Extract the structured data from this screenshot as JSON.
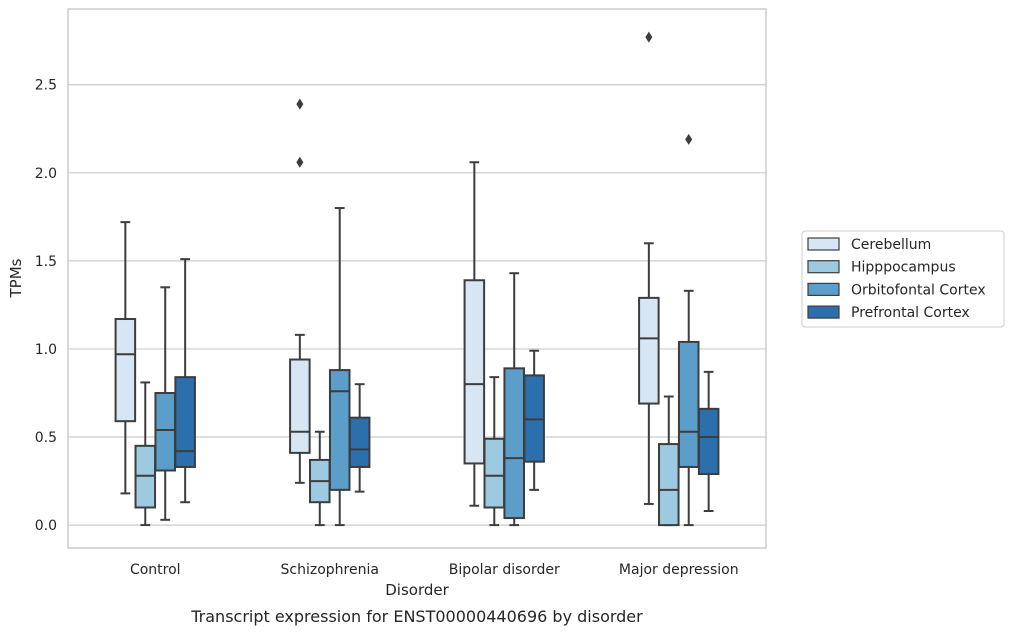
{
  "chart_data": {
    "type": "box",
    "caption": "Transcript expression for ENST00000440696 by disorder",
    "xlabel": "Disorder",
    "ylabel": "TPMs",
    "ylim": [
      -0.13,
      2.93
    ],
    "yticks": [
      "0.0",
      "0.5",
      "1.0",
      "1.5",
      "2.0",
      "2.5"
    ],
    "grid": "horizontal",
    "legend_position": "right",
    "categories": [
      "Control",
      "Schizophrenia",
      "Bipolar disorder",
      "Major depression"
    ],
    "series": [
      {
        "name": "Cerebellum",
        "color": "#d6e6f4",
        "boxes": [
          {
            "whisker_low": 0.18,
            "q1": 0.59,
            "median": 0.97,
            "q3": 1.17,
            "whisker_high": 1.72,
            "outliers": []
          },
          {
            "whisker_low": 0.24,
            "q1": 0.41,
            "median": 0.53,
            "q3": 0.94,
            "whisker_high": 1.08,
            "outliers": [
              2.06,
              2.39
            ]
          },
          {
            "whisker_low": 0.11,
            "q1": 0.35,
            "median": 0.8,
            "q3": 1.39,
            "whisker_high": 2.06,
            "outliers": []
          },
          {
            "whisker_low": 0.12,
            "q1": 0.69,
            "median": 1.06,
            "q3": 1.29,
            "whisker_high": 1.6,
            "outliers": [
              2.77
            ]
          }
        ]
      },
      {
        "name": "Hipppocampus",
        "color": "#9ecae1",
        "boxes": [
          {
            "whisker_low": 0.0,
            "q1": 0.1,
            "median": 0.28,
            "q3": 0.45,
            "whisker_high": 0.81,
            "outliers": []
          },
          {
            "whisker_low": 0.0,
            "q1": 0.13,
            "median": 0.25,
            "q3": 0.37,
            "whisker_high": 0.53,
            "outliers": []
          },
          {
            "whisker_low": 0.0,
            "q1": 0.1,
            "median": 0.28,
            "q3": 0.49,
            "whisker_high": 0.84,
            "outliers": []
          },
          {
            "whisker_low": 0.0,
            "q1": 0.0,
            "median": 0.2,
            "q3": 0.46,
            "whisker_high": 0.73,
            "outliers": []
          }
        ]
      },
      {
        "name": "Orbitofontal Cortex",
        "color": "#5a9ec9",
        "boxes": [
          {
            "whisker_low": 0.03,
            "q1": 0.31,
            "median": 0.54,
            "q3": 0.75,
            "whisker_high": 1.35,
            "outliers": []
          },
          {
            "whisker_low": 0.0,
            "q1": 0.2,
            "median": 0.76,
            "q3": 0.88,
            "whisker_high": 1.8,
            "outliers": []
          },
          {
            "whisker_low": 0.0,
            "q1": 0.04,
            "median": 0.38,
            "q3": 0.89,
            "whisker_high": 1.43,
            "outliers": []
          },
          {
            "whisker_low": 0.0,
            "q1": 0.33,
            "median": 0.53,
            "q3": 1.04,
            "whisker_high": 1.33,
            "outliers": [
              2.19
            ]
          }
        ]
      },
      {
        "name": "Prefrontal Cortex",
        "color": "#2c6fad",
        "boxes": [
          {
            "whisker_low": 0.13,
            "q1": 0.33,
            "median": 0.42,
            "q3": 0.84,
            "whisker_high": 1.51,
            "outliers": []
          },
          {
            "whisker_low": 0.19,
            "q1": 0.33,
            "median": 0.43,
            "q3": 0.61,
            "whisker_high": 0.8,
            "outliers": []
          },
          {
            "whisker_low": 0.2,
            "q1": 0.36,
            "median": 0.6,
            "q3": 0.85,
            "whisker_high": 0.99,
            "outliers": []
          },
          {
            "whisker_low": 0.08,
            "q1": 0.29,
            "median": 0.5,
            "q3": 0.66,
            "whisker_high": 0.87,
            "outliers": []
          }
        ]
      }
    ]
  }
}
